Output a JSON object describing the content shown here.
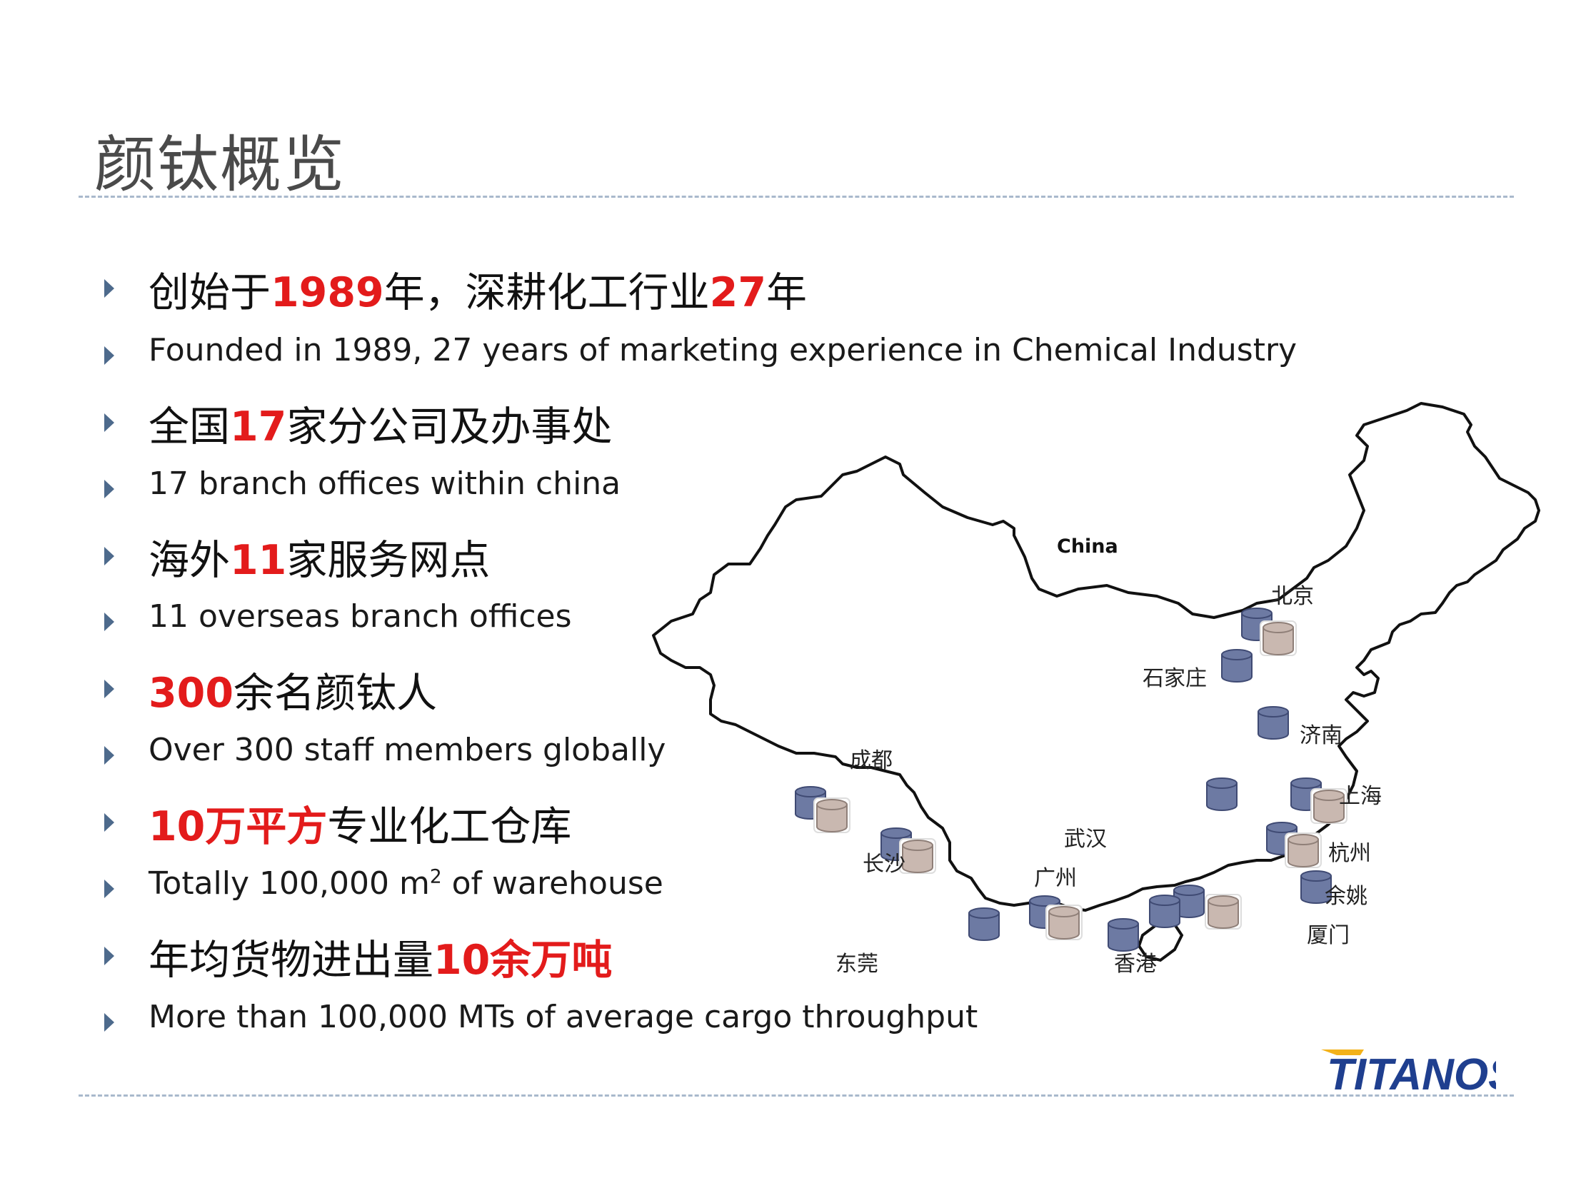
{
  "title": "颜钛概览",
  "bullets": [
    {
      "type": "cn",
      "parts": [
        {
          "t": "创始于"
        },
        {
          "t": "1989",
          "red": true
        },
        {
          "t": "年，深耕化工行业"
        },
        {
          "t": "27",
          "red": true
        },
        {
          "t": "年"
        }
      ]
    },
    {
      "type": "en",
      "parts": [
        {
          "t": "Founded in 1989, 27 years of marketing experience in Chemical Industry"
        }
      ]
    },
    {
      "type": "cn",
      "parts": [
        {
          "t": "全国"
        },
        {
          "t": "17",
          "red": true
        },
        {
          "t": "家分公司及办事处"
        }
      ]
    },
    {
      "type": "en",
      "parts": [
        {
          "t": "17 branch offices within china"
        }
      ]
    },
    {
      "type": "cn",
      "parts": [
        {
          "t": "海外"
        },
        {
          "t": "11",
          "red": true
        },
        {
          "t": "家服务网点"
        }
      ]
    },
    {
      "type": "en",
      "parts": [
        {
          "t": "11 overseas branch offices"
        }
      ]
    },
    {
      "type": "cn",
      "parts": [
        {
          "t": "300",
          "red": true
        },
        {
          "t": "余名颜钛人"
        }
      ]
    },
    {
      "type": "en",
      "parts": [
        {
          "t": "Over 300 staff members globally"
        }
      ]
    },
    {
      "type": "cn",
      "parts": [
        {
          "t": "10万平方",
          "red": true
        },
        {
          "t": "专业化工仓库"
        }
      ]
    },
    {
      "type": "en",
      "parts": [
        {
          "t": "Totally 100,000 m"
        },
        {
          "t": "2",
          "sup": true
        },
        {
          "t": " of warehouse"
        }
      ]
    },
    {
      "type": "cn",
      "parts": [
        {
          "t": "年均货物进出量"
        },
        {
          "t": "10余万吨",
          "red": true
        }
      ]
    },
    {
      "type": "en",
      "parts": [
        {
          "t": "More than 100,000 MTs of average cargo throughput"
        }
      ]
    }
  ],
  "map": {
    "country_label": "China",
    "cities": [
      "北京",
      "石家庄",
      "济南",
      "成都",
      "上海",
      "武汉",
      "杭州",
      "长沙",
      "广州",
      "余姚",
      "厦门",
      "东莞",
      "香港"
    ]
  },
  "logo_text": "TITANOS",
  "colors": {
    "accent_red": "#e31b1b",
    "office_blue": "#6d7aa3",
    "warehouse_tan": "#c9b8b0",
    "rule": "#a9b9cc",
    "arrow": "#4d6a8c"
  }
}
